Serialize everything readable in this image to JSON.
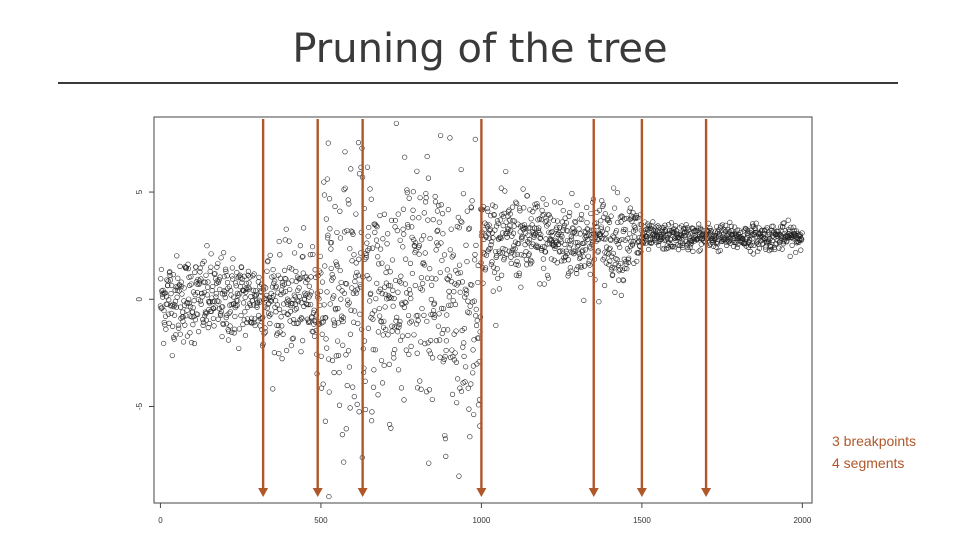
{
  "slide": {
    "title": "Pruning of the tree",
    "note_line1": "3 breakpoints",
    "note_line2": "4 segments",
    "arrow_color": "#b0572a",
    "point_color": "#222222"
  },
  "chart_data": {
    "type": "scatter",
    "title": "",
    "xlabel": "",
    "ylabel": "",
    "xlim": [
      -20,
      2030
    ],
    "ylim": [
      -9.5,
      8.5
    ],
    "x_ticks": [
      0,
      500,
      1000,
      1500,
      2000
    ],
    "x_tick_labels": [
      "0",
      "500",
      "1000",
      "1500",
      "2000"
    ],
    "y_ticks": [
      -5,
      0,
      5
    ],
    "y_tick_labels": [
      "-5",
      "0",
      "5"
    ],
    "grid": false,
    "candidate_breakpoints_x": [
      320,
      490,
      630,
      1000,
      1350,
      1500,
      1700
    ],
    "segments": [
      {
        "x_start": 0,
        "x_end": 320,
        "mean": 0.0,
        "sd": 1.0
      },
      {
        "x_start": 320,
        "x_end": 500,
        "mean": 0.0,
        "sd": 1.2
      },
      {
        "x_start": 500,
        "x_end": 1000,
        "mean": 0.3,
        "sd": 3.0
      },
      {
        "x_start": 1000,
        "x_end": 1500,
        "mean": 2.8,
        "sd": 1.0
      },
      {
        "x_start": 1500,
        "x_end": 2000,
        "mean": 2.9,
        "sd": 0.3
      }
    ],
    "n_points": 2000
  }
}
